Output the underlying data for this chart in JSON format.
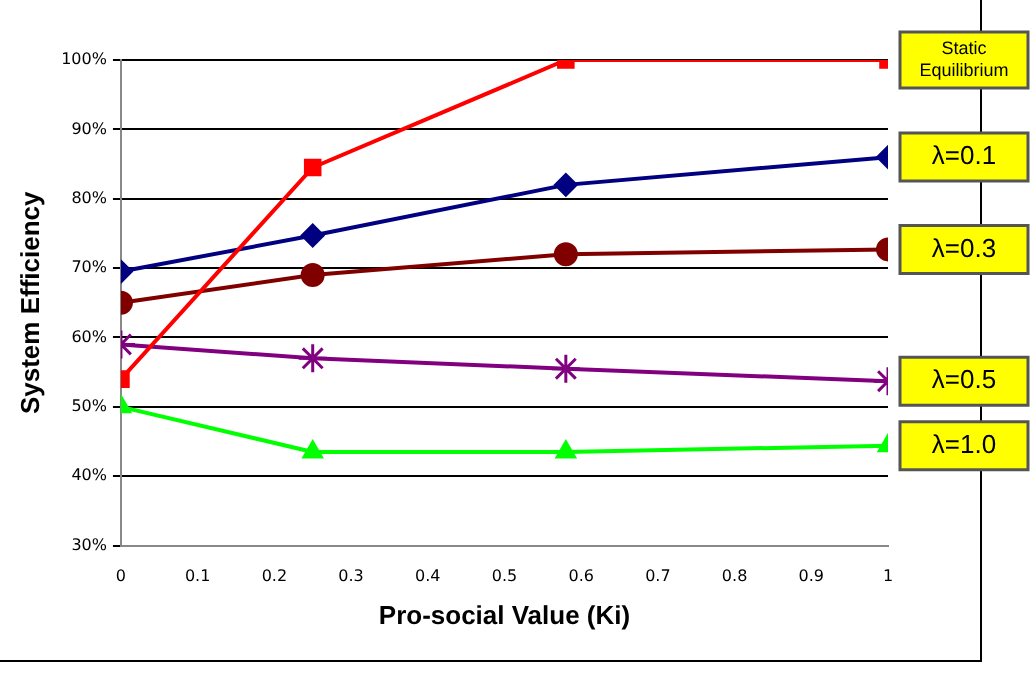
{
  "chart_data": {
    "type": "line",
    "xlabel": "Pro-social Value (Ki)",
    "ylabel": "System Efficiency",
    "x": [
      0,
      0.25,
      0.58,
      1
    ],
    "series": [
      {
        "name": "Static Equilibrium",
        "color": "#ff0000",
        "marker": "square",
        "values": [
          54,
          84.5,
          100,
          100
        ]
      },
      {
        "name": "λ=0.1",
        "color": "#000080",
        "marker": "diamond",
        "values": [
          69.5,
          74.7,
          82,
          86
        ]
      },
      {
        "name": "λ=0.3",
        "color": "#800000",
        "marker": "circle",
        "values": [
          65,
          69,
          72,
          72.7
        ]
      },
      {
        "name": "λ=0.5",
        "color": "#800080",
        "marker": "cross",
        "values": [
          59,
          57,
          55.5,
          53.7
        ]
      },
      {
        "name": "λ=1.0",
        "color": "#00ff00",
        "marker": "triangle",
        "values": [
          50,
          43.5,
          43.5,
          44.4
        ]
      }
    ],
    "xlim": [
      0,
      1
    ],
    "xticks": [
      0,
      0.1,
      0.2,
      0.3,
      0.4,
      0.5,
      0.6,
      0.7,
      0.8,
      0.9,
      1
    ],
    "ylim": [
      30,
      100
    ],
    "yticks": [
      {
        "value": 30,
        "label": "30%"
      },
      {
        "value": 40,
        "label": "40%"
      },
      {
        "value": 50,
        "label": "50%"
      },
      {
        "value": 60,
        "label": "60%"
      },
      {
        "value": 70,
        "label": "70%"
      },
      {
        "value": 80,
        "label": "80%"
      },
      {
        "value": 90,
        "label": "90%"
      },
      {
        "value": 100,
        "label": "100%"
      }
    ],
    "grid": "y",
    "legend": false
  }
}
